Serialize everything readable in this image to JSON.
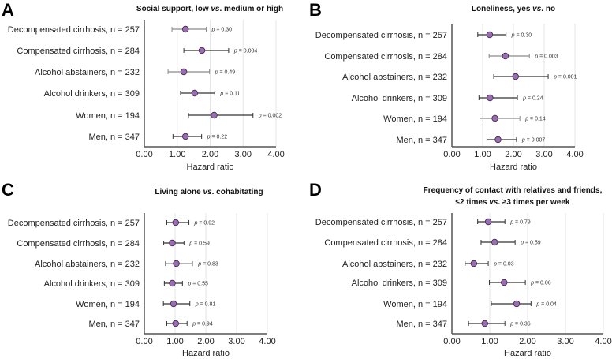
{
  "chart_data": [
    {
      "type": "forest",
      "panel": "A",
      "title": [
        "Social support, low ",
        "vs",
        ". medium or high"
      ],
      "title2": null,
      "xlabel": "Hazard ratio",
      "xlim": [
        0,
        4
      ],
      "ticks": [
        "0.00",
        "1.00",
        "2.00",
        "3.00",
        "4.00"
      ],
      "categories": [
        "Decompensated cirrhosis, n = 257",
        "Compensated cirrhosis, n = 284",
        "Alcohol abstainers, n = 232",
        "Alcohol drinkers, n = 309",
        "Women, n = 194",
        "Men, n = 347"
      ],
      "hr": [
        1.25,
        1.75,
        1.2,
        1.53,
        2.12,
        1.25
      ],
      "ci_low": [
        0.84,
        1.2,
        0.72,
        1.1,
        1.34,
        0.87
      ],
      "ci_high": [
        1.88,
        2.56,
        1.98,
        2.14,
        3.3,
        1.74
      ],
      "p": [
        "0.30",
        "0.004",
        "0.49",
        "0.11",
        "0.002",
        "0.22"
      ]
    },
    {
      "type": "forest",
      "panel": "B",
      "title": [
        "Loneliness, yes ",
        "vs",
        ". no"
      ],
      "title2": null,
      "xlabel": "Hazard ratio",
      "xlim": [
        0,
        4
      ],
      "ticks": [
        "0.00",
        "1.00",
        "2.00",
        "3.00",
        "4.00"
      ],
      "categories": [
        "Decompensated cirrhosis, n = 257",
        "Compensated cirrhosis, n = 284",
        "Alcohol abstainers, n = 232",
        "Alcohol drinkers, n = 309",
        "Women, n = 194",
        "Men, n = 347"
      ],
      "hr": [
        1.23,
        1.74,
        2.07,
        1.24,
        1.4,
        1.5
      ],
      "ci_low": [
        0.84,
        1.21,
        1.36,
        0.88,
        0.91,
        1.14
      ],
      "ci_high": [
        1.76,
        2.52,
        3.13,
        2.13,
        2.21,
        2.1
      ],
      "p": [
        "0.30",
        "0.003",
        "0.001",
        "0.24",
        "0.14",
        "0.007"
      ]
    },
    {
      "type": "forest",
      "panel": "C",
      "title": [
        "Living alone ",
        "vs",
        ". cohabitating"
      ],
      "title2": null,
      "xlabel": "Hazard ratio",
      "xlim": [
        0,
        4
      ],
      "ticks": [
        "0.00",
        "1.00",
        "2.00",
        "3.00",
        "4.00"
      ],
      "categories": [
        "Decompensated cirrhosis, n = 257",
        "Compensated cirrhosis, n = 284",
        "Alcohol abstainers, n = 232",
        "Alcohol drinkers, n = 309",
        "Women, n = 194",
        "Men, n = 347"
      ],
      "hr": [
        1.02,
        0.91,
        1.04,
        0.91,
        0.95,
        1.02
      ],
      "ci_low": [
        0.73,
        0.63,
        0.68,
        0.65,
        0.62,
        0.73
      ],
      "ci_high": [
        1.45,
        1.29,
        1.57,
        1.24,
        1.48,
        1.39
      ],
      "p": [
        "0.92",
        "0.59",
        "0.83",
        "0.55",
        "0.81",
        "0.94"
      ]
    },
    {
      "type": "forest",
      "panel": "D",
      "title": [
        "Frequency of contact with relatives and friends,",
        "",
        ""
      ],
      "title2": [
        "≤2 times ",
        "vs",
        ". ≥3 times per week"
      ],
      "xlabel": "Hazard ratio",
      "xlim": [
        0,
        4
      ],
      "ticks": [
        "0.00",
        "1.00",
        "2.00",
        "3.00",
        "4.00"
      ],
      "categories": [
        "Decompensated cirrhosis, n = 257",
        "Compensated cirrhosis, n = 284",
        "Alcohol abstainers, n = 232",
        "Alcohol drinkers, n = 309",
        "Women, n = 194",
        "Men, n = 347"
      ],
      "hr": [
        0.96,
        1.13,
        0.58,
        1.38,
        1.71,
        0.87
      ],
      "ci_low": [
        0.68,
        0.77,
        0.35,
        0.99,
        1.04,
        0.44
      ],
      "ci_high": [
        1.4,
        1.67,
        0.96,
        1.94,
        2.09,
        1.4
      ],
      "p": [
        "0.79",
        "0.59",
        "0.03",
        "0.06",
        "0.04",
        "0.36"
      ]
    }
  ],
  "colors": {
    "point": "#9b6bb3",
    "point_stroke": "#3a2a44",
    "ci_dark": "#333333",
    "ci_grey": "#8a8a8a",
    "grid": "#e6e6e6",
    "axis": "#555555"
  },
  "p_prefix": "p",
  "p_eq": " = "
}
